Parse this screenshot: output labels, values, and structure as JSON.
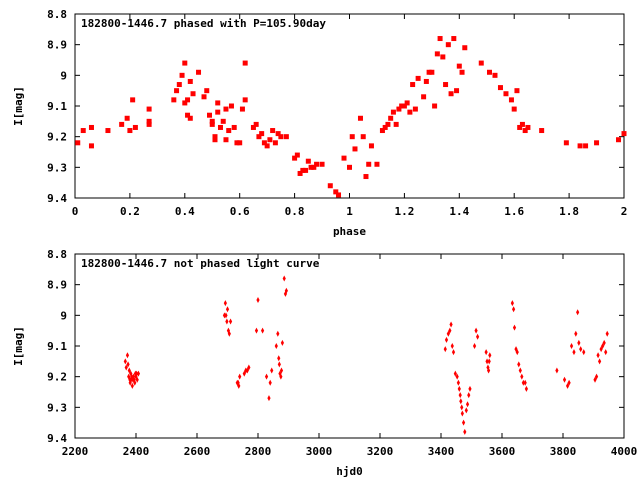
{
  "chart_data": [
    {
      "type": "scatter",
      "title": "182800-1446.7 phased with P=105.90day",
      "xlabel": "phase",
      "ylabel": "I[mag]",
      "xlim": [
        0,
        2
      ],
      "ylim": [
        9.4,
        8.8
      ],
      "y_inverted": true,
      "x_ticks": [
        "0",
        "0.2",
        "0.4",
        "0.6",
        "0.8",
        "1",
        "1.2",
        "1.4",
        "1.6",
        "1.8",
        "2"
      ],
      "y_ticks": [
        "8.8",
        "8.9",
        "9",
        "9.1",
        "9.2",
        "9.3",
        "9.4"
      ],
      "marker_color": "#ff0000",
      "grid": false,
      "series": [
        {
          "x": [
            0.01,
            0.03,
            0.06,
            0.06,
            0.12,
            0.17,
            0.19,
            0.2,
            0.21,
            0.22,
            0.27,
            0.27,
            0.27,
            0.36,
            0.37,
            0.38,
            0.39,
            0.4,
            0.4,
            0.41,
            0.41,
            0.42,
            0.42,
            0.43,
            0.45,
            0.47,
            0.48,
            0.49,
            0.5,
            0.5,
            0.51,
            0.51,
            0.52,
            0.52,
            0.53,
            0.54,
            0.55,
            0.55,
            0.56,
            0.57,
            0.58,
            0.59,
            0.6,
            0.61,
            0.62,
            0.62,
            0.65,
            0.66,
            0.67,
            0.68,
            0.69,
            0.7,
            0.71,
            0.72,
            0.73,
            0.74,
            0.75,
            0.77,
            0.8,
            0.81,
            0.82,
            0.83,
            0.84,
            0.85,
            0.86,
            0.87,
            0.88,
            0.9,
            0.93,
            0.95,
            0.96,
            0.98,
            1.0,
            1.01,
            1.02,
            1.04,
            1.05,
            1.06,
            1.07,
            1.08,
            1.1,
            1.12,
            1.13,
            1.14,
            1.15,
            1.16,
            1.17,
            1.18,
            1.19,
            1.2,
            1.21,
            1.22,
            1.23,
            1.24,
            1.25,
            1.27,
            1.28,
            1.29,
            1.3,
            1.31,
            1.32,
            1.33,
            1.34,
            1.35,
            1.36,
            1.37,
            1.38,
            1.39,
            1.4,
            1.41,
            1.42,
            1.48,
            1.51,
            1.53,
            1.55,
            1.57,
            1.59,
            1.6,
            1.61,
            1.62,
            1.63,
            1.64,
            1.65,
            1.7,
            1.79,
            1.84,
            1.86,
            1.9,
            1.98,
            2.0
          ],
          "y": [
            9.22,
            9.18,
            9.17,
            9.23,
            9.18,
            9.16,
            9.14,
            9.18,
            9.08,
            9.17,
            9.11,
            9.15,
            9.16,
            9.08,
            9.05,
            9.03,
            9.0,
            8.96,
            9.09,
            9.08,
            9.13,
            9.14,
            9.02,
            9.06,
            8.99,
            9.07,
            9.05,
            9.13,
            9.15,
            9.16,
            9.2,
            9.21,
            9.12,
            9.09,
            9.17,
            9.15,
            9.11,
            9.21,
            9.18,
            9.1,
            9.17,
            9.22,
            9.22,
            9.11,
            9.08,
            8.96,
            9.17,
            9.16,
            9.2,
            9.19,
            9.22,
            9.23,
            9.21,
            9.18,
            9.22,
            9.19,
            9.2,
            9.2,
            9.27,
            9.26,
            9.32,
            9.31,
            9.31,
            9.28,
            9.3,
            9.3,
            9.29,
            9.29,
            9.36,
            9.38,
            9.39,
            9.27,
            9.3,
            9.2,
            9.24,
            9.14,
            9.2,
            9.33,
            9.29,
            9.23,
            9.29,
            9.18,
            9.17,
            9.16,
            9.14,
            9.12,
            9.16,
            9.11,
            9.1,
            9.1,
            9.09,
            9.12,
            9.03,
            9.11,
            9.01,
            9.07,
            9.02,
            8.99,
            8.99,
            9.1,
            8.93,
            8.88,
            8.94,
            9.03,
            8.9,
            9.06,
            8.88,
            9.05,
            8.97,
            8.99,
            8.91,
            8.96,
            8.99,
            9.0,
            9.04,
            9.06,
            9.08,
            9.11,
            9.05,
            9.17,
            9.16,
            9.18,
            9.17,
            9.18,
            9.22,
            9.23,
            9.23,
            9.22,
            9.21,
            9.19
          ]
        }
      ]
    },
    {
      "type": "scatter",
      "title": "182800-1446.7 not phased light curve",
      "xlabel": "hjd0",
      "ylabel": "I[mag]",
      "xlim": [
        2200,
        4000
      ],
      "ylim": [
        9.4,
        8.8
      ],
      "y_inverted": true,
      "x_ticks": [
        "2200",
        "2400",
        "2600",
        "2800",
        "3000",
        "3200",
        "3400",
        "3600",
        "3800",
        "4000"
      ],
      "y_ticks": [
        "8.8",
        "8.9",
        "9",
        "9.1",
        "9.2",
        "9.3",
        "9.4"
      ],
      "marker_color": "#ff0000",
      "grid": false,
      "series": [
        {
          "x": [
            2365,
            2368,
            2372,
            2374,
            2376,
            2378,
            2380,
            2381,
            2383,
            2384,
            2386,
            2388,
            2390,
            2392,
            2394,
            2396,
            2398,
            2400,
            2402,
            2404,
            2408,
            2690,
            2693,
            2695,
            2698,
            2700,
            2703,
            2706,
            2710,
            2732,
            2735,
            2737,
            2740,
            2755,
            2760,
            2765,
            2770,
            2795,
            2800,
            2815,
            2828,
            2836,
            2840,
            2845,
            2860,
            2865,
            2868,
            2870,
            2872,
            2875,
            2877,
            2880,
            2886,
            2890,
            2893,
            3414,
            3418,
            3424,
            3429,
            3433,
            3437,
            3441,
            3447,
            3453,
            3457,
            3460,
            3463,
            3465,
            3468,
            3470,
            3474,
            3478,
            3483,
            3487,
            3491,
            3495,
            3510,
            3515,
            3520,
            3548,
            3551,
            3554,
            3556,
            3558,
            3560,
            3634,
            3638,
            3641,
            3646,
            3650,
            3655,
            3660,
            3665,
            3670,
            3676,
            3680,
            3780,
            3805,
            3815,
            3820,
            3828,
            3836,
            3842,
            3848,
            3852,
            3858,
            3868,
            3905,
            3910,
            3915,
            3920,
            3925,
            3930,
            3935,
            3940,
            3945
          ],
          "y": [
            9.15,
            9.17,
            9.13,
            9.16,
            9.2,
            9.18,
            9.21,
            9.22,
            9.19,
            9.21,
            9.2,
            9.23,
            9.21,
            9.2,
            9.21,
            9.22,
            9.19,
            9.2,
            9.19,
            9.21,
            9.19,
            9.0,
            8.96,
            9.0,
            9.02,
            8.98,
            9.05,
            9.06,
            9.02,
            9.22,
            9.22,
            9.23,
            9.2,
            9.19,
            9.18,
            9.18,
            9.17,
            9.05,
            8.95,
            9.05,
            9.2,
            9.27,
            9.22,
            9.18,
            9.1,
            9.06,
            9.14,
            9.16,
            9.19,
            9.2,
            9.18,
            9.09,
            8.88,
            8.93,
            8.92,
            9.11,
            9.08,
            9.06,
            9.05,
            9.03,
            9.1,
            9.12,
            9.19,
            9.2,
            9.22,
            9.24,
            9.26,
            9.28,
            9.3,
            9.32,
            9.35,
            9.38,
            9.31,
            9.29,
            9.26,
            9.24,
            9.1,
            9.05,
            9.07,
            9.12,
            9.15,
            9.17,
            9.18,
            9.15,
            9.13,
            8.96,
            8.98,
            9.04,
            9.11,
            9.12,
            9.16,
            9.18,
            9.2,
            9.22,
            9.22,
            9.24,
            9.18,
            9.21,
            9.23,
            9.22,
            9.1,
            9.12,
            9.06,
            8.99,
            9.09,
            9.11,
            9.12,
            9.21,
            9.2,
            9.13,
            9.15,
            9.11,
            9.1,
            9.09,
            9.12,
            9.06
          ]
        }
      ]
    }
  ]
}
